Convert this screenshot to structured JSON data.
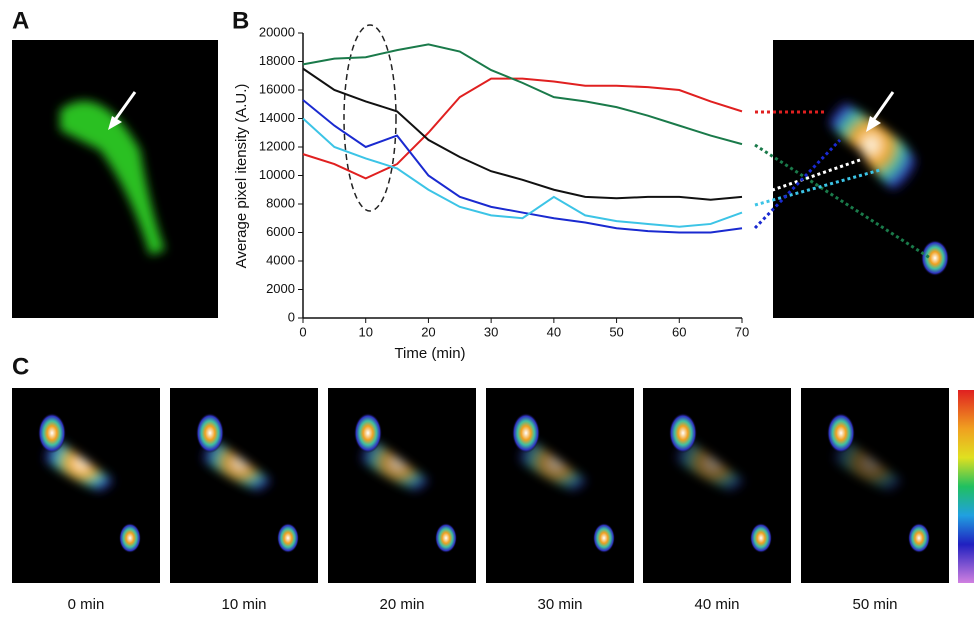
{
  "panels": {
    "a": "A",
    "b": "B",
    "c": "C"
  },
  "chart_data": {
    "type": "line",
    "x_label": "Time (min)",
    "y_label": "Average pixel itensity (A.U.)",
    "x": [
      0,
      5,
      10,
      15,
      20,
      25,
      30,
      35,
      40,
      45,
      50,
      55,
      60,
      65,
      70
    ],
    "series": [
      {
        "color": "#e02020",
        "values": [
          11500,
          10800,
          9800,
          10800,
          13000,
          15500,
          16800,
          16800,
          16600,
          16300,
          16300,
          16200,
          16000,
          15200,
          14500
        ]
      },
      {
        "color": "#1a7a4a",
        "values": [
          17800,
          18200,
          18300,
          18800,
          19200,
          18700,
          17400,
          16500,
          15500,
          15200,
          14800,
          14200,
          13500,
          12800,
          12200
        ]
      },
      {
        "color": "#111111",
        "values": [
          17500,
          16000,
          15200,
          14500,
          12500,
          11300,
          10300,
          9700,
          9000,
          8500,
          8400,
          8500,
          8500,
          8300,
          8500
        ]
      },
      {
        "color": "#1a2ad0",
        "values": [
          15300,
          13500,
          12000,
          12800,
          10000,
          8500,
          7800,
          7400,
          7000,
          6700,
          6300,
          6100,
          6000,
          6000,
          6300
        ]
      },
      {
        "color": "#3cc4e6",
        "values": [
          14000,
          12000,
          11200,
          10500,
          9000,
          7800,
          7200,
          7000,
          8500,
          7200,
          6800,
          6600,
          6400,
          6600,
          7400
        ]
      }
    ],
    "xlim": [
      0,
      70
    ],
    "xticks": [
      0,
      10,
      20,
      30,
      40,
      50,
      60,
      70
    ],
    "ylim": [
      0,
      20000
    ],
    "yticks": [
      0,
      2000,
      4000,
      6000,
      8000,
      10000,
      12000,
      14000,
      16000,
      18000,
      20000
    ]
  },
  "time_labels": [
    "0 min",
    "10 min",
    "20 min",
    "30 min",
    "40 min",
    "50 min"
  ]
}
